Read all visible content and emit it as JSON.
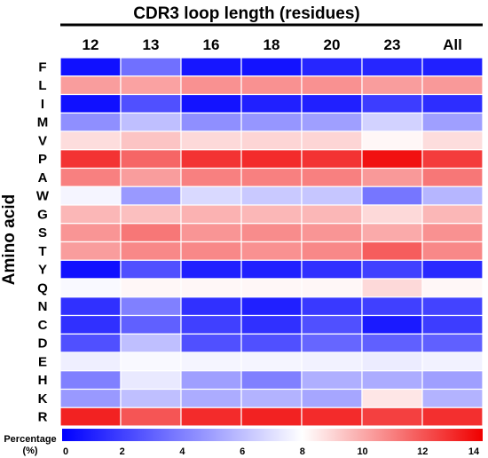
{
  "chart_data": {
    "type": "heatmap",
    "title": "CDR3 loop length (residues)",
    "xlabel": "",
    "ylabel": "Amino acid",
    "columns": [
      "12",
      "13",
      "16",
      "18",
      "20",
      "23",
      "All"
    ],
    "rows": [
      "F",
      "L",
      "I",
      "M",
      "V",
      "P",
      "A",
      "W",
      "G",
      "S",
      "T",
      "Y",
      "Q",
      "N",
      "C",
      "D",
      "E",
      "H",
      "K",
      "R"
    ],
    "values": [
      [
        0.5,
        3.5,
        0.7,
        0.6,
        1.2,
        1.2,
        1.0
      ],
      [
        10.3,
        10.2,
        10.6,
        10.6,
        10.6,
        10.3,
        10.4
      ],
      [
        0.5,
        2.5,
        0.6,
        1.0,
        1.0,
        1.9,
        1.4
      ],
      [
        4.5,
        6.0,
        4.5,
        4.7,
        5.0,
        6.6,
        5.0
      ],
      [
        8.8,
        9.4,
        8.9,
        9.0,
        9.0,
        8.2,
        8.8
      ],
      [
        12.8,
        11.6,
        12.8,
        13.0,
        12.8,
        13.6,
        12.6
      ],
      [
        11.0,
        10.3,
        11.0,
        11.0,
        11.0,
        10.4,
        11.2
      ],
      [
        7.7,
        4.8,
        6.8,
        6.3,
        6.2,
        3.7,
        5.7
      ],
      [
        9.7,
        9.5,
        9.8,
        9.7,
        9.7,
        8.9,
        9.7
      ],
      [
        10.5,
        11.2,
        10.5,
        10.7,
        10.5,
        10.0,
        10.6
      ],
      [
        10.3,
        10.8,
        10.8,
        10.6,
        10.8,
        11.8,
        10.8
      ],
      [
        0.5,
        2.5,
        1.0,
        1.0,
        1.5,
        2.0,
        1.3
      ],
      [
        7.8,
        8.2,
        8.2,
        8.2,
        8.2,
        8.9,
        8.2
      ],
      [
        1.5,
        4.0,
        1.5,
        1.0,
        1.8,
        2.0,
        2.1
      ],
      [
        1.5,
        3.0,
        2.0,
        1.5,
        2.5,
        0.8,
        1.9
      ],
      [
        2.5,
        6.0,
        2.5,
        2.5,
        3.2,
        3.0,
        3.0
      ],
      [
        7.5,
        7.8,
        7.7,
        7.7,
        7.6,
        7.4,
        7.6
      ],
      [
        4.0,
        7.3,
        5.0,
        4.0,
        5.5,
        5.4,
        5.0
      ],
      [
        4.8,
        6.0,
        5.4,
        5.6,
        5.2,
        8.6,
        5.6
      ],
      [
        13.2,
        12.0,
        13.0,
        13.2,
        13.0,
        12.5,
        12.9
      ]
    ],
    "colorbar": {
      "label": "Percentage (%)",
      "label_lines": [
        "Percentage",
        "(%)"
      ],
      "min": 0,
      "max": 14,
      "ticks": [
        0,
        2,
        4,
        6,
        8,
        10,
        12,
        14
      ],
      "tick_labels": [
        "0",
        "2",
        "4",
        "6",
        "8",
        "10",
        "12",
        "14"
      ]
    },
    "colors": {
      "low": "#0000ff",
      "mid": "#ffffff",
      "high": "#f00000"
    },
    "midpoint": 8,
    "grid": true
  }
}
